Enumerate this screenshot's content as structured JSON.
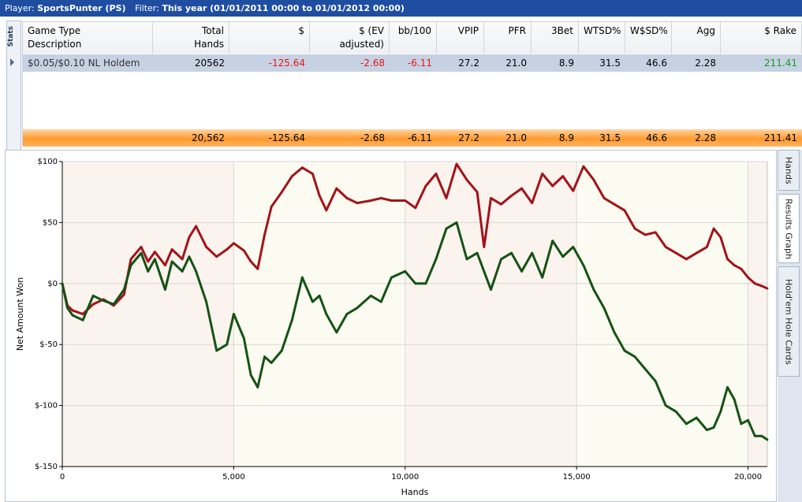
{
  "titlebar": {
    "player_label": "Player:",
    "player_value": "SportsPunter (PS)",
    "filter_label": "Filter:",
    "filter_value": "This year (01/01/2011 00:00 to 01/01/2012 00:00)"
  },
  "stats_tab": {
    "label": "Stats"
  },
  "table": {
    "columns": [
      {
        "line1": "Game Type",
        "line2": "Description"
      },
      {
        "line1": "Total",
        "line2": "Hands"
      },
      {
        "line1": "$",
        "line2": ""
      },
      {
        "line1": "$ (EV",
        "line2": "adjusted)"
      },
      {
        "line1": "bb/100",
        "line2": ""
      },
      {
        "line1": "VPIP",
        "line2": ""
      },
      {
        "line1": "PFR",
        "line2": ""
      },
      {
        "line1": "3Bet",
        "line2": ""
      },
      {
        "line1": "WTSD%",
        "line2": ""
      },
      {
        "line1": "W$SD%",
        "line2": ""
      },
      {
        "line1": "Agg",
        "line2": ""
      },
      {
        "line1": "$ Rake",
        "line2": ""
      }
    ],
    "row": [
      "$0.05/$0.10 NL Holdem",
      "20562",
      "-125.64",
      "-2.68",
      "-6.11",
      "27.2",
      "21.0",
      "8.9",
      "31.5",
      "46.6",
      "2.28",
      "211.41"
    ],
    "totals": [
      "",
      "20,562",
      "-125.64",
      "-2.68",
      "-6.11",
      "27.2",
      "21.0",
      "8.9",
      "31.5",
      "46.6",
      "2.28",
      "211.41"
    ]
  },
  "side_tabs": [
    {
      "label": "Hands",
      "active": false
    },
    {
      "label": "Results Graph",
      "active": true
    },
    {
      "label": "Hold'em Hole Cards",
      "active": false
    }
  ],
  "colors": {
    "negative": "#e8141a",
    "positive": "#129c1e",
    "series_ev": "#a3131a",
    "series_net": "#145214"
  },
  "chart_data": {
    "type": "line",
    "xlabel": "Hands",
    "ylabel": "Net Amount Won",
    "xlim": [
      0,
      20562
    ],
    "ylim": [
      -150,
      100
    ],
    "x_ticks": [
      0,
      5000,
      10000,
      15000,
      20000
    ],
    "x_tick_labels": [
      "0",
      "5,000",
      "10,000",
      "15,000",
      "20,000"
    ],
    "y_ticks": [
      100,
      50,
      0,
      -50,
      -100,
      -150
    ],
    "y_tick_labels": [
      "$100",
      "$50",
      "$0",
      "$-50",
      "$-100",
      "$-150"
    ],
    "grid": true,
    "series": [
      {
        "color": "#a3131a",
        "x": [
          0,
          150,
          300,
          600,
          900,
          1200,
          1500,
          1800,
          2000,
          2300,
          2500,
          2700,
          3000,
          3200,
          3500,
          3700,
          3900,
          4200,
          4500,
          4800,
          5000,
          5300,
          5500,
          5700,
          5900,
          6100,
          6400,
          6700,
          7000,
          7300,
          7500,
          7700,
          8000,
          8300,
          8600,
          9000,
          9300,
          9600,
          10000,
          10300,
          10600,
          10900,
          11200,
          11500,
          11800,
          12100,
          12300,
          12500,
          12800,
          13100,
          13400,
          13700,
          14000,
          14300,
          14600,
          14900,
          15200,
          15500,
          15800,
          16100,
          16400,
          16700,
          17000,
          17300,
          17600,
          17900,
          18200,
          18500,
          18800,
          19000,
          19200,
          19400,
          19600,
          19800,
          20000,
          20200,
          20400,
          20562
        ],
        "values": [
          0,
          -18,
          -22,
          -25,
          -17,
          -13,
          -18,
          -9,
          20,
          30,
          18,
          26,
          15,
          28,
          20,
          38,
          47,
          30,
          22,
          28,
          33,
          27,
          18,
          12,
          40,
          63,
          75,
          88,
          95,
          90,
          72,
          60,
          78,
          70,
          66,
          68,
          70,
          68,
          68,
          62,
          80,
          90,
          70,
          98,
          85,
          75,
          30,
          70,
          65,
          72,
          78,
          66,
          90,
          80,
          88,
          76,
          96,
          85,
          70,
          65,
          60,
          45,
          40,
          42,
          30,
          25,
          20,
          25,
          30,
          45,
          38,
          20,
          15,
          12,
          5,
          0,
          -2,
          -4
        ]
      },
      {
        "color": "#145214",
        "x": [
          0,
          150,
          300,
          600,
          900,
          1200,
          1500,
          1800,
          2000,
          2300,
          2500,
          2700,
          3000,
          3200,
          3500,
          3700,
          3900,
          4200,
          4500,
          4800,
          5000,
          5300,
          5500,
          5700,
          5900,
          6100,
          6400,
          6700,
          7000,
          7300,
          7500,
          7700,
          8000,
          8300,
          8600,
          9000,
          9300,
          9600,
          10000,
          10300,
          10600,
          10900,
          11200,
          11500,
          11800,
          12100,
          12300,
          12500,
          12800,
          13100,
          13400,
          13700,
          14000,
          14300,
          14600,
          14900,
          15200,
          15500,
          15800,
          16100,
          16400,
          16700,
          17000,
          17300,
          17600,
          17900,
          18200,
          18500,
          18800,
          19000,
          19200,
          19400,
          19600,
          19800,
          20000,
          20200,
          20400,
          20562
        ],
        "values": [
          0,
          -20,
          -26,
          -30,
          -10,
          -14,
          -17,
          -5,
          15,
          25,
          10,
          20,
          -5,
          18,
          10,
          22,
          10,
          -15,
          -55,
          -50,
          -25,
          -45,
          -75,
          -85,
          -60,
          -65,
          -55,
          -30,
          5,
          -15,
          -10,
          -25,
          -40,
          -25,
          -20,
          -10,
          -15,
          5,
          10,
          0,
          0,
          20,
          45,
          50,
          20,
          25,
          10,
          -5,
          20,
          25,
          10,
          25,
          5,
          35,
          22,
          30,
          15,
          -5,
          -20,
          -40,
          -55,
          -60,
          -70,
          -80,
          -100,
          -105,
          -115,
          -110,
          -120,
          -118,
          -105,
          -85,
          -95,
          -115,
          -112,
          -125,
          -125,
          -128
        ]
      }
    ]
  }
}
